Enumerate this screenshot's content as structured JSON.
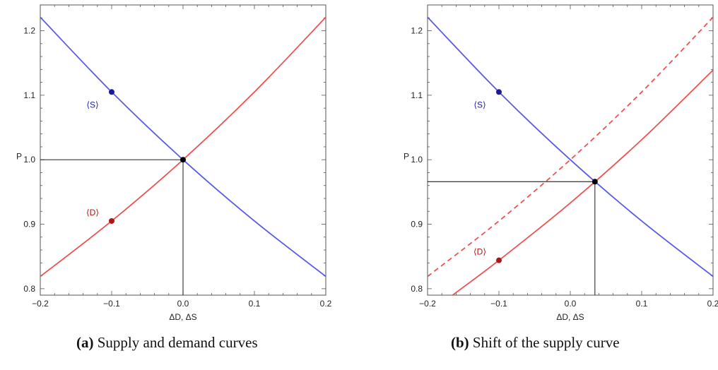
{
  "colors": {
    "supply": "#5a5ae6",
    "demand": "#ec5252",
    "supply_point": "#1a1aa0",
    "demand_point": "#b01414",
    "equilibrium": "#000000",
    "frame": "#555555"
  },
  "captions": [
    {
      "tag": "(a)",
      "text": "Supply and demand curves"
    },
    {
      "tag": "(b)",
      "text": "Shift of the supply curve"
    }
  ],
  "chart_data": [
    {
      "type": "line",
      "xlabel": "ΔD, ΔS",
      "ylabel": "P",
      "xlim": [
        -0.2,
        0.2
      ],
      "ylim": [
        0.79,
        1.24
      ],
      "xticks": [
        -0.2,
        -0.1,
        0.0,
        0.1,
        0.2
      ],
      "xtick_labels": [
        "−0.2",
        "−0.1",
        "0.0",
        "0.1",
        "0.2"
      ],
      "yticks": [
        0.8,
        0.9,
        1.0,
        1.1,
        1.2
      ],
      "ytick_labels": [
        "0.8",
        "0.9",
        "1.0",
        "1.1",
        "1.2"
      ],
      "grid": false,
      "series": [
        {
          "role": "supply",
          "style": "solid",
          "x": [
            -0.2,
            -0.1,
            0.0,
            0.1,
            0.2
          ],
          "y": [
            1.221,
            1.105,
            1.0,
            0.905,
            0.819
          ]
        },
        {
          "role": "demand",
          "style": "solid",
          "x": [
            -0.2,
            -0.1,
            0.0,
            0.1,
            0.2
          ],
          "y": [
            0.819,
            0.905,
            1.0,
            1.105,
            1.221
          ]
        }
      ],
      "points": [
        {
          "role": "supply_point",
          "label": "⟨S⟩",
          "x": -0.1,
          "y": 1.105,
          "label_pos": "below"
        },
        {
          "role": "demand_point",
          "label": "⟨D⟩",
          "x": -0.1,
          "y": 0.905,
          "label_pos": "above"
        },
        {
          "role": "equilibrium",
          "label": "",
          "x": 0.0,
          "y": 1.0
        }
      ],
      "equilibrium_lines": {
        "x": 0.0,
        "y": 1.0
      }
    },
    {
      "type": "line",
      "xlabel": "ΔD, ΔS",
      "ylabel": "P",
      "xlim": [
        -0.2,
        0.2
      ],
      "ylim": [
        0.79,
        1.24
      ],
      "xticks": [
        -0.2,
        -0.1,
        0.0,
        0.1,
        0.2
      ],
      "xtick_labels": [
        "−0.2",
        "−0.1",
        "0.0",
        "0.1",
        "0.2"
      ],
      "yticks": [
        0.8,
        0.9,
        1.0,
        1.1,
        1.2
      ],
      "ytick_labels": [
        "0.8",
        "0.9",
        "1.0",
        "1.1",
        "1.2"
      ],
      "grid": false,
      "series": [
        {
          "role": "supply",
          "style": "solid",
          "x": [
            -0.2,
            -0.1,
            0.0,
            0.1,
            0.2
          ],
          "y": [
            1.221,
            1.105,
            1.0,
            0.905,
            0.819
          ]
        },
        {
          "role": "demand",
          "style": "dashed",
          "x": [
            -0.2,
            -0.1,
            0.0,
            0.1,
            0.2
          ],
          "y": [
            0.819,
            0.905,
            1.0,
            1.105,
            1.221
          ]
        },
        {
          "role": "demand",
          "style": "solid",
          "x": [
            -0.165,
            -0.1,
            0.0,
            0.1,
            0.2
          ],
          "y": [
            0.79,
            0.844,
            0.933,
            1.031,
            1.139
          ]
        }
      ],
      "points": [
        {
          "role": "supply_point",
          "label": "⟨S⟩",
          "x": -0.1,
          "y": 1.105,
          "label_pos": "below"
        },
        {
          "role": "demand_point",
          "label": "⟨D⟩",
          "x": -0.1,
          "y": 0.844,
          "label_pos": "above"
        },
        {
          "role": "equilibrium",
          "label": "",
          "x": 0.0345,
          "y": 0.966
        }
      ],
      "equilibrium_lines": {
        "x": 0.0345,
        "y": 0.966
      }
    }
  ]
}
